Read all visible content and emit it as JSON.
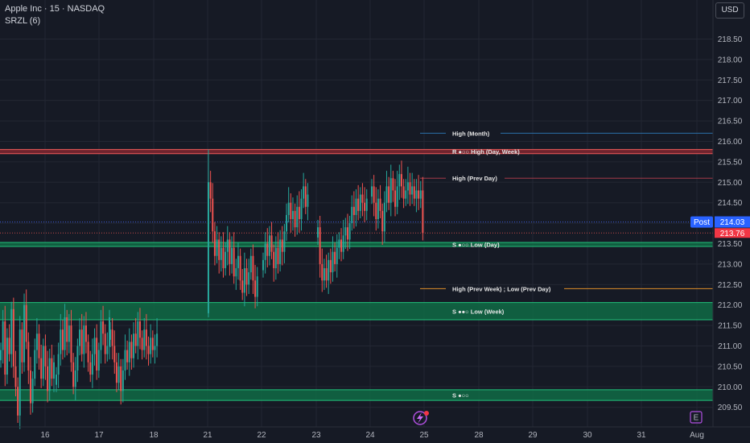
{
  "header": {
    "symbol": "Apple Inc · 15 · NASDAQ",
    "indicator": "SRZL (6)",
    "currency": "USD"
  },
  "colors": {
    "background": "#161a25",
    "up_candle": "#26a69a",
    "down_candle": "#ef5350",
    "zone_fill": "#0f6b45",
    "zone_border": "#22c07a",
    "resistance": "#f05a5a",
    "month_line": "#2b6fa8",
    "prev_day_line": "#a13a48",
    "orange_line": "#e0902a",
    "post_label": "#2962ff",
    "last_label": "#f23645"
  },
  "icons": {
    "lightning": "lightning-icon",
    "earnings": "earnings-icon"
  },
  "earnings_marker": "E",
  "chart_data": {
    "type": "candlestick",
    "title": "Apple Inc · 15 · NASDAQ",
    "ylim": [
      209.2,
      219.0
    ],
    "y_ticks": [
      209.5,
      210.0,
      210.5,
      211.0,
      211.5,
      212.0,
      212.5,
      213.0,
      213.5,
      214.0,
      214.5,
      215.0,
      215.5,
      216.0,
      216.5,
      217.0,
      217.5,
      218.0,
      218.5
    ],
    "x_ticks": [
      "16",
      "17",
      "18",
      "21",
      "22",
      "23",
      "24",
      "25",
      "28",
      "29",
      "30",
      "31",
      "Aug"
    ],
    "grid": true,
    "legend": "none",
    "price_labels": [
      {
        "label": "Post",
        "value": "214.03"
      },
      {
        "label": "",
        "value": "213.76"
      }
    ],
    "levels": [
      {
        "name": "High (Month)",
        "price": 216.2,
        "kind": "line"
      },
      {
        "name": "R ●○○ High (Day, Week)",
        "price": 215.75,
        "kind": "resistance"
      },
      {
        "name": "High (Prev Day)",
        "price": 215.1,
        "kind": "line"
      },
      {
        "name": "S ●○○ Low (Day)",
        "price": 213.48,
        "kind": "zone"
      },
      {
        "name": "High (Prev Week) ; Low (Prev Day)",
        "price": 212.4,
        "kind": "line"
      },
      {
        "name": "S ●●○ Low (Week)",
        "price": 211.85,
        "kind": "zone"
      },
      {
        "name": "S ●○○",
        "price": 209.8,
        "kind": "zone"
      }
    ],
    "candle_segments": [
      {
        "day": "16",
        "closes": [
          210.9,
          211.6,
          210.3,
          211.2,
          210.8,
          211.9,
          210.5,
          210.0,
          209.3,
          211.4,
          210.6,
          212.0,
          211.1,
          210.4,
          209.6,
          210.2,
          210.9,
          211.3,
          210.7,
          210.2,
          211.0,
          210.5,
          209.9,
          210.7,
          210.2,
          210.6
        ]
      },
      {
        "day": "17",
        "closes": [
          210.3,
          210.8,
          211.4,
          210.9,
          211.7,
          211.1,
          211.5,
          210.6,
          210.0,
          210.4,
          211.0,
          211.4,
          210.8,
          211.5,
          211.1,
          210.6,
          210.3,
          210.8,
          211.2,
          210.4,
          210.9,
          211.6,
          211.3,
          210.8,
          211.0,
          211.7
        ]
      },
      {
        "day": "18",
        "closes": [
          211.4,
          211.0,
          210.6,
          210.1,
          210.5,
          209.9,
          210.4,
          210.9,
          210.6,
          211.1,
          210.7,
          211.3,
          211.0,
          211.6,
          211.2,
          210.9,
          211.4,
          211.0,
          210.8,
          211.2,
          210.9,
          211.0,
          211.3
        ]
      },
      {
        "day": "21",
        "closes": [
          215.0,
          214.6,
          213.8,
          213.2,
          213.6,
          213.1,
          213.4,
          212.9,
          213.3,
          213.6,
          213.0,
          213.4,
          212.7,
          212.9,
          213.2,
          212.6,
          212.3,
          212.9,
          212.5,
          212.8,
          213.2,
          212.6,
          212.2,
          212.7
        ]
      },
      {
        "day": "22",
        "closes": [
          213.1,
          213.5,
          213.2,
          213.7,
          213.3,
          212.9,
          213.4,
          213.0,
          213.6,
          213.3,
          213.8,
          214.2,
          214.5,
          214.1,
          214.3,
          213.9,
          214.4,
          214.1,
          214.6,
          214.9,
          214.4,
          214.7
        ]
      },
      {
        "day": "23",
        "closes": [
          213.9,
          213.0,
          212.6,
          212.9,
          212.6,
          213.1,
          212.8,
          213.3,
          213.0,
          213.4,
          213.6,
          213.3,
          213.7,
          213.9,
          213.6,
          214.0,
          214.4,
          214.2,
          214.6,
          214.3,
          214.7,
          214.5,
          214.3,
          214.6
        ]
      },
      {
        "day": "24",
        "closes": [
          214.9,
          214.5,
          214.1,
          214.6,
          214.3,
          213.8,
          214.5,
          214.9,
          214.5,
          215.1,
          214.8,
          214.4,
          214.9,
          215.2,
          214.9,
          214.6,
          214.8,
          215.0,
          214.7,
          214.9,
          214.6,
          214.8,
          214.6,
          214.8,
          213.76
        ]
      }
    ]
  }
}
